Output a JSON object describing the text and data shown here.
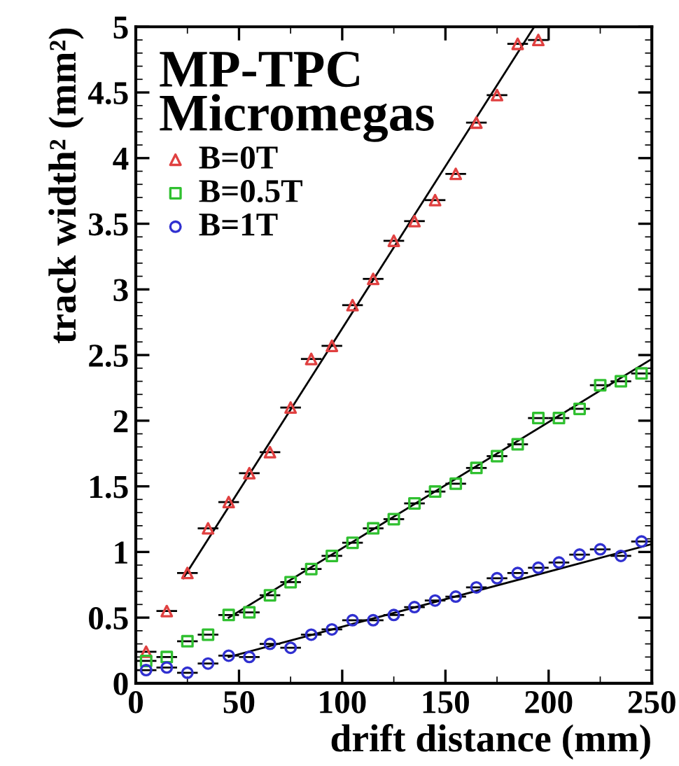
{
  "chart_data": {
    "type": "scatter",
    "xlabel": "drift distance (mm)",
    "ylabel": "track width² (mm²)",
    "legend_title": "MP-TPC\nMicromegas",
    "xlim": [
      0,
      250
    ],
    "ylim": [
      0,
      5
    ],
    "xticks": [
      0,
      50,
      100,
      150,
      200,
      250
    ],
    "yticks": [
      0,
      0.5,
      1,
      1.5,
      2,
      2.5,
      3,
      3.5,
      4,
      4.5,
      5
    ],
    "legend": "top left",
    "grid": false,
    "series": [
      {
        "name": "B=0T",
        "color": "#e04040",
        "marker": "triangle",
        "x": [
          5,
          15,
          25,
          35,
          45,
          55,
          65,
          75,
          85,
          95,
          105,
          115,
          125,
          135,
          145,
          155,
          165,
          175,
          185,
          195
        ],
        "values": [
          0.24,
          0.55,
          0.84,
          1.18,
          1.38,
          1.6,
          1.76,
          2.1,
          2.47,
          2.57,
          2.88,
          3.08,
          3.37,
          3.52,
          3.68,
          3.88,
          4.27,
          4.48,
          4.87,
          4.9
        ],
        "xerrors": [
          5,
          5,
          5,
          5,
          5,
          5,
          5,
          5,
          5,
          5,
          5,
          5,
          5,
          5,
          5,
          5,
          5,
          5,
          5,
          5
        ]
      },
      {
        "name": "B=0.5T",
        "color": "#30c030",
        "marker": "square",
        "x": [
          5,
          15,
          25,
          35,
          45,
          55,
          65,
          75,
          85,
          95,
          105,
          115,
          125,
          135,
          145,
          155,
          165,
          175,
          185,
          195,
          205,
          215,
          225,
          235,
          245
        ],
        "values": [
          0.17,
          0.2,
          0.32,
          0.37,
          0.52,
          0.54,
          0.67,
          0.77,
          0.87,
          0.97,
          1.07,
          1.18,
          1.25,
          1.37,
          1.46,
          1.52,
          1.64,
          1.73,
          1.82,
          2.02,
          2.02,
          2.09,
          2.27,
          2.3,
          2.36
        ],
        "xerrors": [
          5,
          5,
          5,
          5,
          5,
          5,
          5,
          5,
          5,
          5,
          5,
          5,
          5,
          5,
          5,
          5,
          5,
          5,
          5,
          5,
          5,
          5,
          5,
          5,
          5
        ]
      },
      {
        "name": "B=1T",
        "color": "#3030d0",
        "marker": "circle",
        "x": [
          5,
          15,
          25,
          35,
          45,
          55,
          65,
          75,
          85,
          95,
          105,
          115,
          125,
          135,
          145,
          155,
          165,
          175,
          185,
          195,
          205,
          215,
          225,
          235,
          245
        ],
        "values": [
          0.1,
          0.12,
          0.08,
          0.15,
          0.21,
          0.2,
          0.3,
          0.27,
          0.37,
          0.41,
          0.48,
          0.48,
          0.52,
          0.58,
          0.63,
          0.66,
          0.73,
          0.8,
          0.84,
          0.88,
          0.92,
          0.98,
          1.02,
          0.97,
          1.08
        ],
        "xerrors": [
          5,
          5,
          5,
          5,
          5,
          5,
          5,
          5,
          5,
          5,
          5,
          5,
          5,
          5,
          5,
          5,
          5,
          5,
          5,
          5,
          5,
          5,
          5,
          5,
          5
        ]
      },
      {
        "type": "line",
        "color": "#000000",
        "x": [
          23,
          193
        ],
        "values": [
          0.8,
          5.0
        ]
      },
      {
        "type": "line",
        "color": "#000000",
        "x": [
          45,
          250
        ],
        "values": [
          0.5,
          2.47
        ]
      },
      {
        "type": "line",
        "color": "#000000",
        "x": [
          45,
          250
        ],
        "values": [
          0.2,
          1.06
        ]
      }
    ]
  }
}
